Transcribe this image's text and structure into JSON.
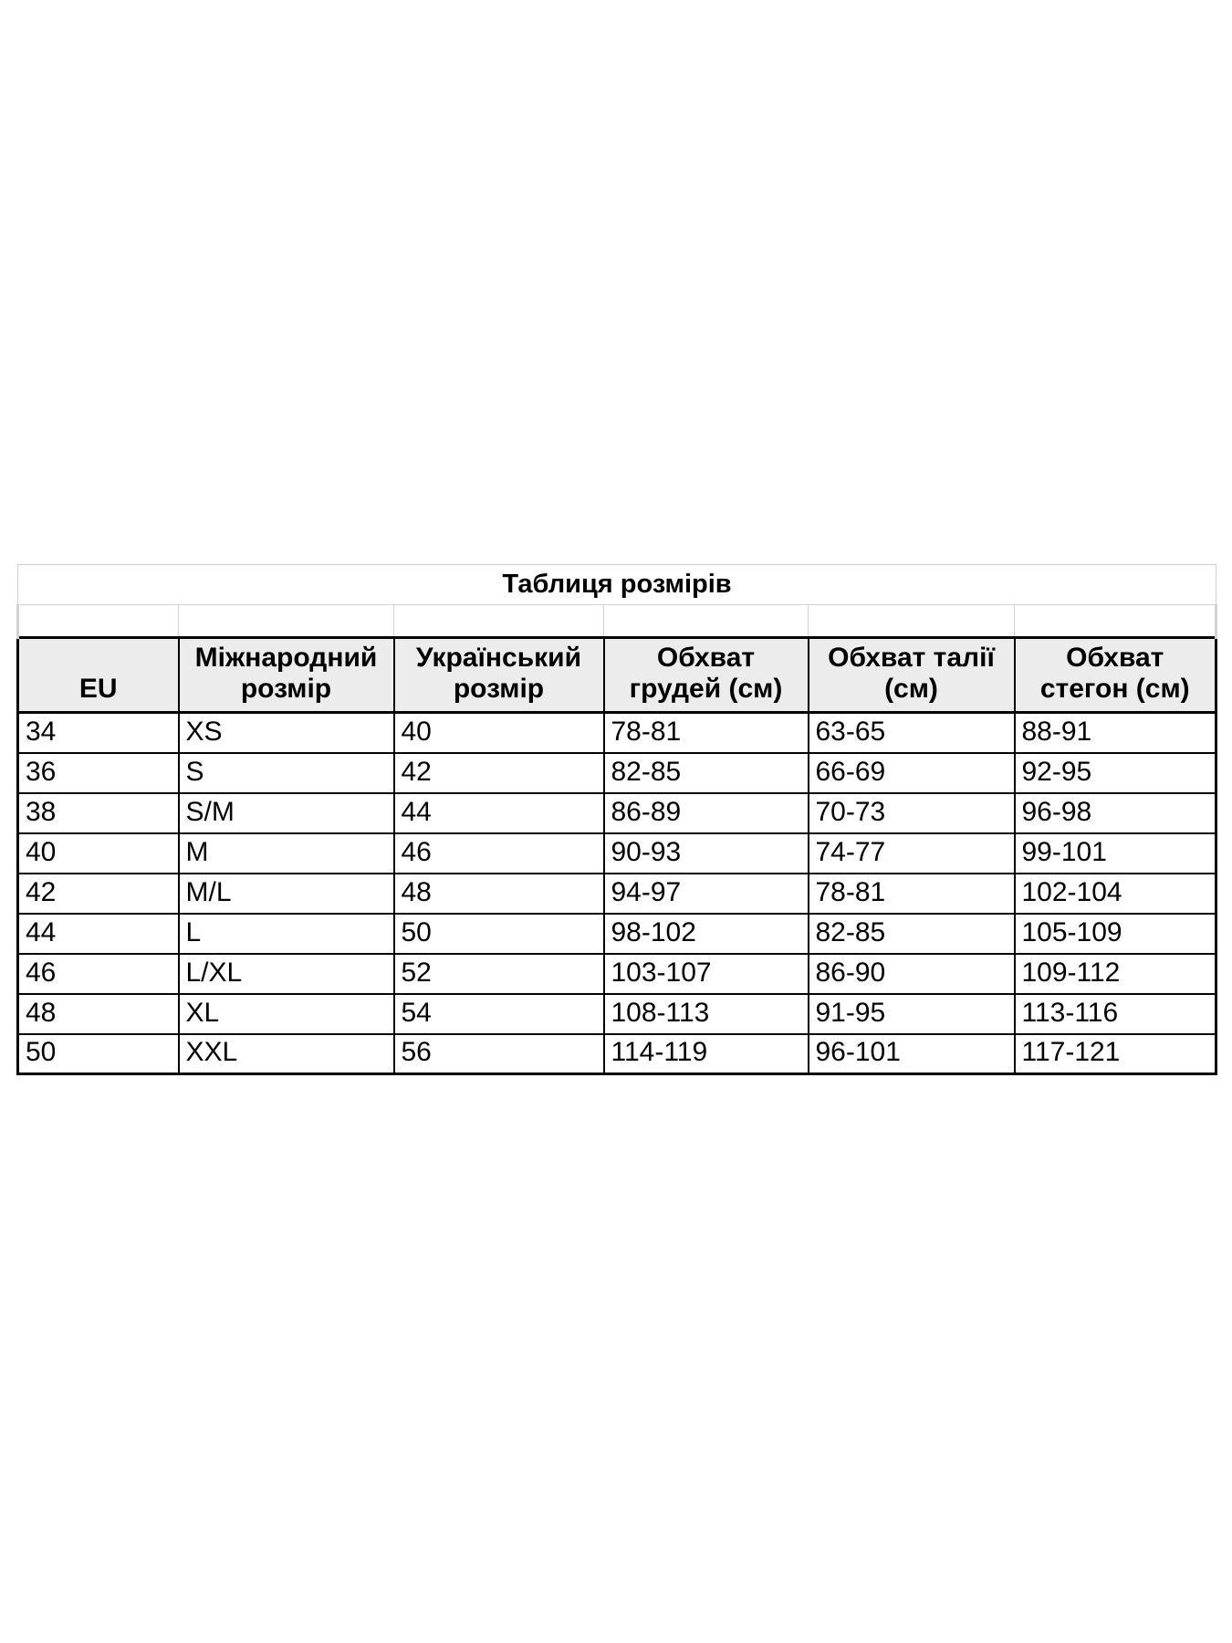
{
  "page": {
    "background": "#ffffff"
  },
  "size_table": {
    "title": "Таблиця розмірів",
    "columns": [
      {
        "key": "eu",
        "lines": [
          "EU"
        ]
      },
      {
        "key": "international-size",
        "lines": [
          "Міжнародний",
          "розмір"
        ]
      },
      {
        "key": "ukrainian-size",
        "lines": [
          "Український",
          "розмір"
        ]
      },
      {
        "key": "chest-cm",
        "lines": [
          "Обхват",
          "грудей (см)"
        ]
      },
      {
        "key": "waist-cm",
        "lines": [
          "Обхват талії",
          "(см)"
        ]
      },
      {
        "key": "hips-cm",
        "lines": [
          "Обхват",
          "стегон (см)"
        ]
      }
    ],
    "rows": [
      [
        "34",
        "XS",
        "40",
        "78-81",
        "63-65",
        "88-91"
      ],
      [
        "36",
        "S",
        "42",
        "82-85",
        "66-69",
        "92-95"
      ],
      [
        "38",
        "S/M",
        "44",
        "86-89",
        "70-73",
        "96-98"
      ],
      [
        "40",
        "M",
        "46",
        "90-93",
        "74-77",
        "99-101"
      ],
      [
        "42",
        "M/L",
        "48",
        "94-97",
        "78-81",
        "102-104"
      ],
      [
        "44",
        "L",
        "50",
        "98-102",
        "82-85",
        "105-109"
      ],
      [
        "46",
        "L/XL",
        "52",
        "103-107",
        "86-90",
        "109-112"
      ],
      [
        "48",
        "XL",
        "54",
        "108-113",
        "91-95",
        "113-116"
      ],
      [
        "50",
        "XXL",
        "56",
        "114-119",
        "96-101",
        "117-121"
      ]
    ],
    "colors": {
      "page_background": "#ffffff",
      "header_background": "#ececec",
      "grid_border": "#000000",
      "light_border": "#d2d2d2",
      "text": "#000000"
    }
  }
}
